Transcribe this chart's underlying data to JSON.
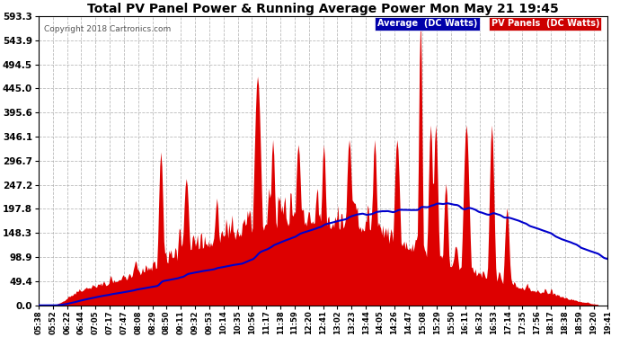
{
  "title": "Total PV Panel Power & Running Average Power Mon May 21 19:45",
  "copyright": "Copyright 2018 Cartronics.com",
  "legend_avg": "Average  (DC Watts)",
  "legend_pv": "PV Panels  (DC Watts)",
  "ylabel_values": [
    0.0,
    49.4,
    98.9,
    148.3,
    197.8,
    247.2,
    296.7,
    346.1,
    395.6,
    445.0,
    494.5,
    543.9,
    593.3
  ],
  "ymax": 593.3,
  "background_color": "#ffffff",
  "plot_bg_color": "#ffffff",
  "grid_color": "#aaaaaa",
  "pv_color": "#dd0000",
  "avg_color": "#0000cc",
  "title_color": "#000000",
  "tick_color": "#000000",
  "copyright_color": "#555555",
  "legend_avg_bg": "#0000aa",
  "legend_pv_bg": "#cc0000",
  "xtick_labels": [
    "05:38",
    "05:52",
    "06:22",
    "06:44",
    "07:05",
    "07:17",
    "07:47",
    "08:08",
    "08:29",
    "08:50",
    "09:11",
    "09:32",
    "09:53",
    "10:14",
    "10:35",
    "10:56",
    "11:17",
    "11:38",
    "11:59",
    "12:20",
    "12:41",
    "13:02",
    "13:23",
    "13:44",
    "14:05",
    "14:26",
    "14:47",
    "15:08",
    "15:29",
    "15:50",
    "16:11",
    "16:32",
    "16:53",
    "17:14",
    "17:35",
    "17:56",
    "18:17",
    "18:38",
    "18:59",
    "19:20",
    "19:41"
  ]
}
